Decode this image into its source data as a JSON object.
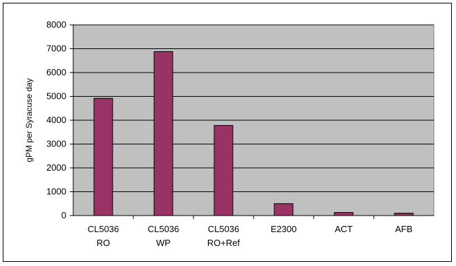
{
  "chart_data": {
    "type": "bar",
    "title": "",
    "xlabel": "",
    "ylabel": "gPM per Syracuse day",
    "categories": [
      [
        "CL5036",
        "RO"
      ],
      [
        "CL5036",
        "WP"
      ],
      [
        "CL5036",
        "RO+Ref"
      ],
      [
        "E2300"
      ],
      [
        "ACT"
      ],
      [
        "AFB"
      ]
    ],
    "values": [
      4920,
      6880,
      3780,
      500,
      130,
      100
    ],
    "ylim": [
      0,
      8000
    ],
    "yticks": [
      0,
      1000,
      2000,
      3000,
      4000,
      5000,
      6000,
      7000,
      8000
    ],
    "grid": true,
    "legend": "none",
    "colors": {
      "bar_fill": "#993366",
      "bar_stroke": "#000000",
      "plot_background": "#c0c0c0",
      "gridline": "#000000"
    }
  }
}
